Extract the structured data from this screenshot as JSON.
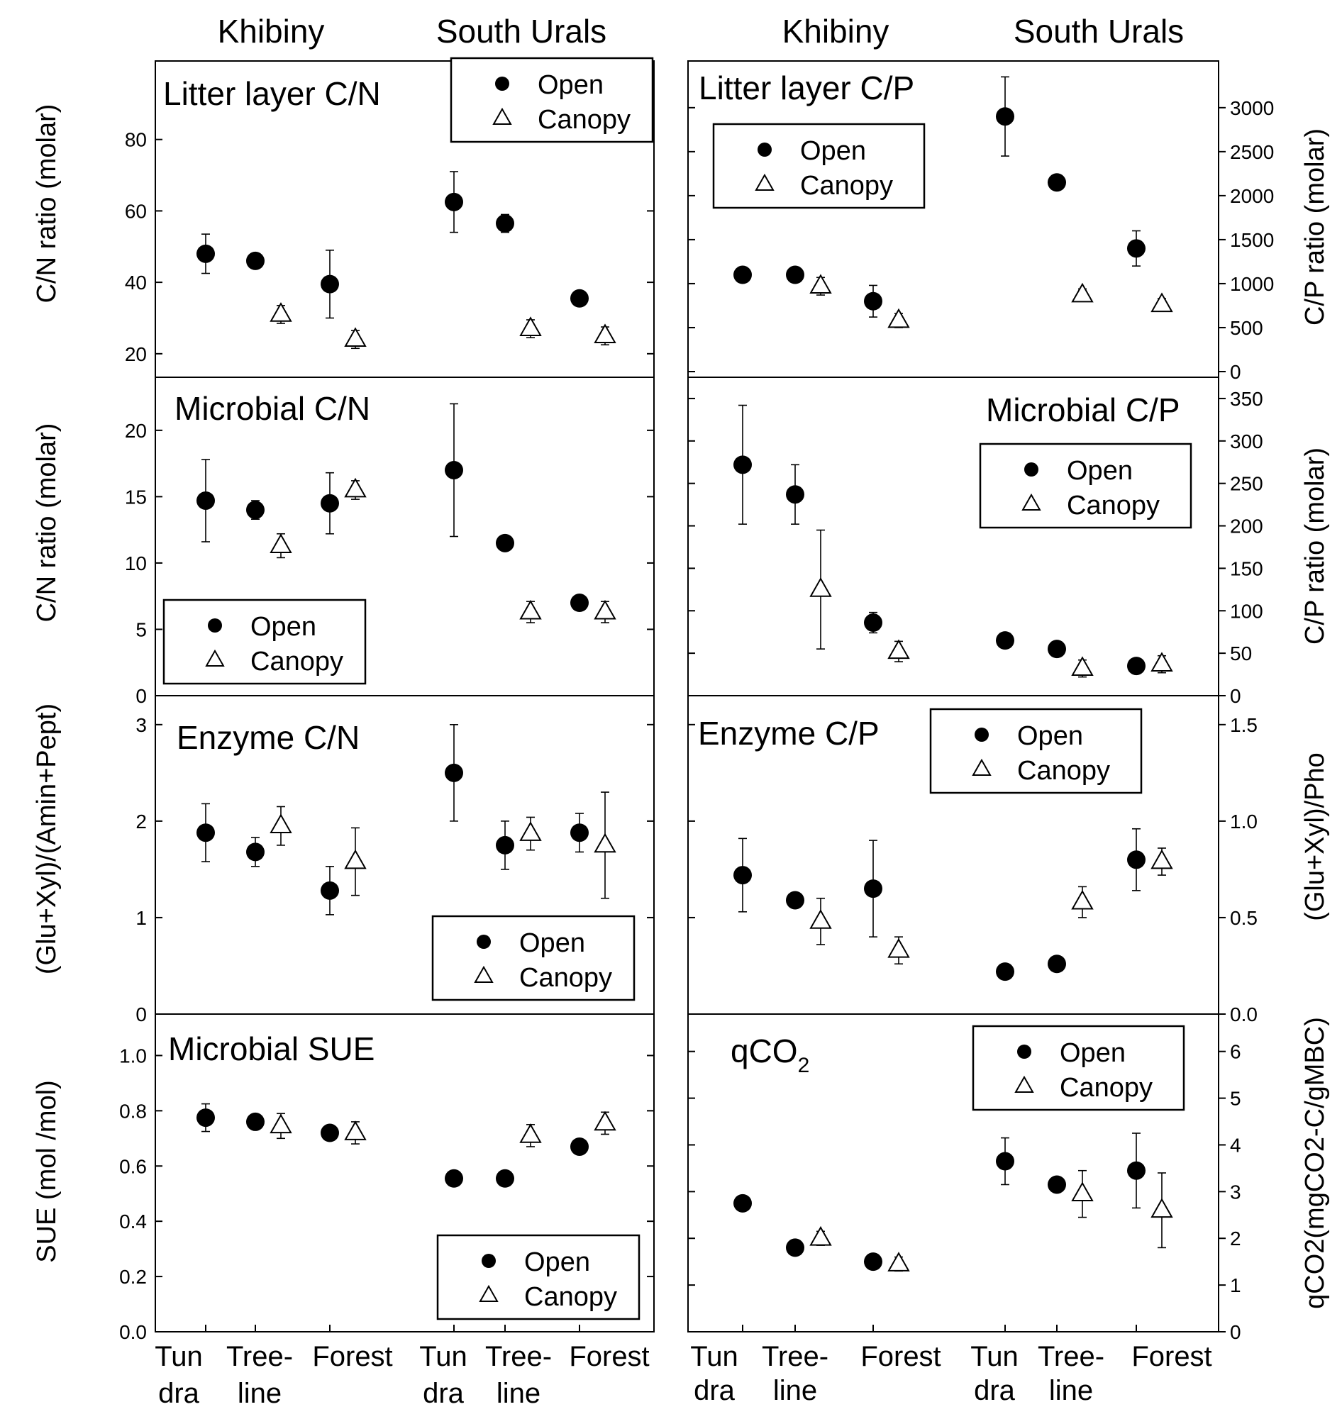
{
  "figure": {
    "site_labels": {
      "left": [
        "Khibiny",
        "South Urals"
      ],
      "right": [
        "Khibiny",
        "South Urals"
      ]
    },
    "y_labels": {
      "left": [
        "C/N ratio (molar)",
        "C/N ratio (molar)",
        "(Glu+Xyl)/(Amin+Pept)",
        "SUE (mol /mol)"
      ],
      "right": [
        "C/P ratio (molar)",
        "C/P ratio (molar)",
        "(Glu+Xyl)/Pho",
        "qCO2(mgCO2-C/gMBC)"
      ]
    },
    "x_categories": [
      [
        "Tun",
        "dra"
      ],
      [
        "Tree-",
        "line"
      ],
      [
        "Forest"
      ],
      [
        "Tun",
        "dra"
      ],
      [
        "Tree-",
        "line"
      ],
      [
        "Forest"
      ]
    ]
  },
  "legend": {
    "open": "Open",
    "canopy": "Canopy"
  },
  "chart_data": [
    {
      "id": "litter-cn",
      "type": "scatter",
      "title": "Litter layer C/N",
      "column": "left",
      "row": 0,
      "ylim": [
        15,
        100
      ],
      "yticks": [
        20,
        40,
        60,
        80
      ],
      "legend_pos": "top-right",
      "categories": [
        "Tundra",
        "Tree-line",
        "Forest",
        "Tundra",
        "Tree-line",
        "Forest"
      ],
      "series": [
        {
          "name": "Open",
          "marker": "circle",
          "values": [
            48,
            46,
            39.5,
            62.5,
            56.5,
            35.5
          ],
          "errors": [
            5.5,
            1.0,
            9.5,
            8.5,
            2.5,
            1.0
          ]
        },
        {
          "name": "Canopy",
          "marker": "triangle",
          "values": [
            null,
            31,
            24,
            null,
            27,
            25
          ],
          "errors": [
            null,
            2.5,
            2.5,
            null,
            2.5,
            2.5
          ]
        }
      ]
    },
    {
      "id": "microbial-cn",
      "type": "scatter",
      "title": "Microbial C/N",
      "column": "left",
      "row": 1,
      "ylim": [
        0,
        24
      ],
      "yticks": [
        0,
        5,
        10,
        15,
        20
      ],
      "legend_pos": "bottom-left",
      "categories": [
        "Tundra",
        "Tree-line",
        "Forest",
        "Tundra",
        "Tree-line",
        "Forest"
      ],
      "series": [
        {
          "name": "Open",
          "marker": "circle",
          "values": [
            14.7,
            14.0,
            14.5,
            17.0,
            11.5,
            7.0
          ],
          "errors": [
            3.1,
            0.7,
            2.3,
            5.0,
            0.3,
            0.4
          ]
        },
        {
          "name": "Canopy",
          "marker": "triangle",
          "values": [
            null,
            11.3,
            15.5,
            null,
            6.3,
            6.3
          ],
          "errors": [
            null,
            0.9,
            0.7,
            null,
            0.8,
            0.8
          ]
        }
      ]
    },
    {
      "id": "enzyme-cn",
      "type": "scatter",
      "title": "Enzyme C/N",
      "column": "left",
      "row": 2,
      "ylim": [
        0,
        3.3
      ],
      "yticks": [
        0,
        1,
        2,
        3
      ],
      "legend_pos": "bottom-right",
      "categories": [
        "Tundra",
        "Tree-line",
        "Forest",
        "Tundra",
        "Tree-line",
        "Forest"
      ],
      "series": [
        {
          "name": "Open",
          "marker": "circle",
          "values": [
            1.88,
            1.68,
            1.28,
            2.5,
            1.75,
            1.88
          ],
          "errors": [
            0.3,
            0.15,
            0.25,
            0.5,
            0.25,
            0.2
          ]
        },
        {
          "name": "Canopy",
          "marker": "triangle",
          "values": [
            null,
            1.95,
            1.58,
            null,
            1.87,
            1.75
          ],
          "errors": [
            null,
            0.2,
            0.35,
            null,
            0.17,
            0.55
          ]
        }
      ]
    },
    {
      "id": "microbial-sue",
      "type": "scatter",
      "title": "Microbial SUE",
      "column": "left",
      "row": 3,
      "ylim": [
        0,
        1.15
      ],
      "yticks": [
        0.0,
        0.2,
        0.4,
        0.6,
        0.8,
        1.0
      ],
      "legend_pos": "bottom-right",
      "categories": [
        "Tundra",
        "Tree-line",
        "Forest",
        "Tundra",
        "Tree-line",
        "Forest"
      ],
      "series": [
        {
          "name": "Open",
          "marker": "circle",
          "values": [
            0.775,
            0.76,
            0.72,
            0.555,
            0.555,
            0.67
          ],
          "errors": [
            0.05,
            0.02,
            0.02,
            0.01,
            0.01,
            0.01
          ]
        },
        {
          "name": "Canopy",
          "marker": "triangle",
          "values": [
            null,
            0.745,
            0.72,
            null,
            0.71,
            0.755
          ],
          "errors": [
            null,
            0.045,
            0.04,
            null,
            0.04,
            0.04
          ]
        }
      ]
    },
    {
      "id": "litter-cp",
      "type": "scatter",
      "title": "Litter layer C/P",
      "column": "right",
      "row": 0,
      "ylim": [
        0,
        3450
      ],
      "yticks": [
        0,
        500,
        1000,
        1500,
        2000,
        2500,
        3000
      ],
      "legend_pos": "top-left",
      "categories": [
        "Tundra",
        "Tree-line",
        "Forest",
        "Tundra",
        "Tree-line",
        "Forest"
      ],
      "series": [
        {
          "name": "Open",
          "marker": "circle",
          "values": [
            1100,
            1100,
            800,
            2900,
            2150,
            1400
          ],
          "errors": [
            0,
            0,
            180,
            450,
            80,
            200
          ]
        },
        {
          "name": "Canopy",
          "marker": "triangle",
          "values": [
            null,
            970,
            580,
            null,
            870,
            760
          ],
          "errors": [
            null,
            100,
            80,
            null,
            70,
            70
          ]
        }
      ]
    },
    {
      "id": "microbial-cp",
      "type": "scatter",
      "title": "Microbial C/P",
      "column": "right",
      "row": 1,
      "ylim": [
        0,
        375
      ],
      "yticks": [
        0,
        50,
        100,
        150,
        200,
        250,
        300,
        350
      ],
      "legend_pos": "top-right",
      "categories": [
        "Tundra",
        "Tree-line",
        "Forest",
        "Tundra",
        "Tree-line",
        "Forest"
      ],
      "series": [
        {
          "name": "Open",
          "marker": "circle",
          "values": [
            272,
            237,
            86,
            65,
            55,
            35
          ],
          "errors": [
            70,
            35,
            12,
            0,
            0,
            0
          ]
        },
        {
          "name": "Canopy",
          "marker": "triangle",
          "values": [
            null,
            125,
            52,
            null,
            32,
            37
          ],
          "errors": [
            null,
            70,
            12,
            null,
            10,
            10
          ]
        }
      ]
    },
    {
      "id": "enzyme-cp",
      "type": "scatter",
      "title": "Enzyme C/P",
      "column": "right",
      "row": 2,
      "ylim": [
        0,
        1.65
      ],
      "yticks": [
        0.0,
        0.5,
        1.0,
        1.5
      ],
      "legend_pos": "top-right",
      "categories": [
        "Tundra",
        "Tree-line",
        "Forest",
        "Tundra",
        "Tree-line",
        "Forest"
      ],
      "series": [
        {
          "name": "Open",
          "marker": "circle",
          "values": [
            0.72,
            0.59,
            0.65,
            0.22,
            0.26,
            0.8
          ],
          "errors": [
            0.19,
            0.03,
            0.25,
            0.02,
            0.02,
            0.16
          ]
        },
        {
          "name": "Canopy",
          "marker": "triangle",
          "values": [
            null,
            0.48,
            0.33,
            null,
            0.58,
            0.79
          ],
          "errors": [
            null,
            0.12,
            0.07,
            null,
            0.08,
            0.07
          ]
        }
      ]
    },
    {
      "id": "qco2",
      "type": "scatter",
      "title": "qCO2",
      "column": "right",
      "row": 3,
      "ylim": [
        0,
        6.8
      ],
      "yticks": [
        0,
        1,
        2,
        3,
        4,
        5,
        6
      ],
      "legend_pos": "top-right",
      "categories": [
        "Tundra",
        "Tree-line",
        "Forest",
        "Tundra",
        "Tree-line",
        "Forest"
      ],
      "series": [
        {
          "name": "Open",
          "marker": "circle",
          "values": [
            2.75,
            1.8,
            1.5,
            3.65,
            3.15,
            3.45
          ],
          "errors": [
            0,
            0,
            0,
            0.5,
            0.1,
            0.8
          ]
        },
        {
          "name": "Canopy",
          "marker": "triangle",
          "values": [
            null,
            2.0,
            1.45,
            null,
            2.95,
            2.6
          ],
          "errors": [
            null,
            0.15,
            0.15,
            null,
            0.5,
            0.8
          ]
        }
      ]
    }
  ]
}
